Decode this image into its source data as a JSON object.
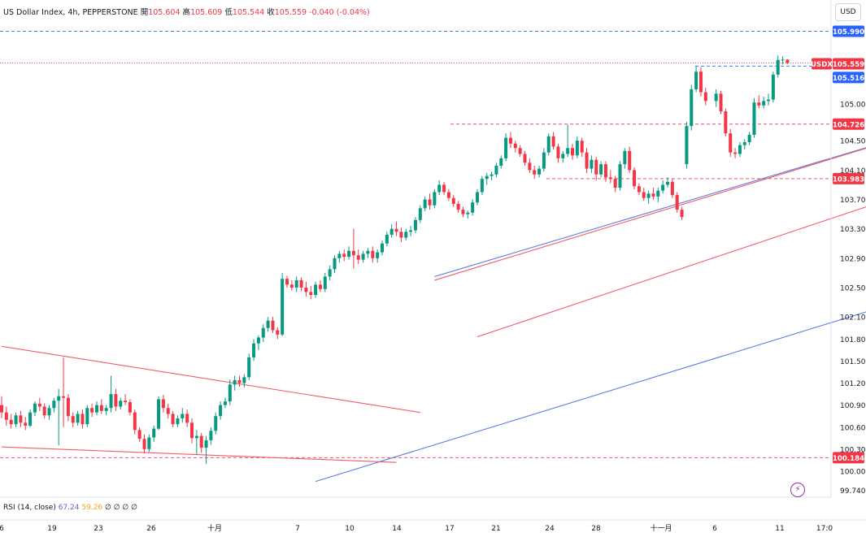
{
  "header": {
    "symbol": "US Dollar Index, 4h, PEPPERSTONE",
    "open_label": "開",
    "open": "105.604",
    "high_label": "高",
    "high": "105.609",
    "low_label": "低",
    "low": "105.544",
    "close_label": "收",
    "close": "105.559",
    "change": "-0.040 (-0.04%)"
  },
  "currency_button": "USD",
  "indicator": {
    "name": "RSI (14, close)",
    "value1": "67.24",
    "value2": "59.26",
    "extras": "∅ ∅ ∅ ∅"
  },
  "colors": {
    "up": "#089981",
    "down": "#f23645",
    "trend_blue": "#5b7fe0",
    "trend_red": "#ef5d6a",
    "blue_tag": "#2962ff",
    "red_tag": "#f23645"
  },
  "icons": {
    "lightning": "lightning-icon"
  },
  "chart_data": {
    "type": "candlestick",
    "y_axis_ticks": [
      "105.000",
      "104.500",
      "104.100",
      "103.700",
      "103.300",
      "102.900",
      "102.500",
      "102.100",
      "101.800",
      "101.500",
      "101.200",
      "100.900",
      "100.600",
      "100.300",
      "100.000",
      "99.740"
    ],
    "x_axis_ticks": [
      "6",
      "19",
      "23",
      "26",
      "十月",
      "7",
      "10",
      "14",
      "17",
      "21",
      "24",
      "28",
      "十一月",
      "6",
      "11",
      "17:0"
    ],
    "price_tags": [
      {
        "label": "105.990",
        "color": "blue"
      },
      {
        "label": "USDX",
        "color": "red"
      },
      {
        "label": "105.559",
        "color": "red"
      },
      {
        "label": "105.516",
        "color": "blue"
      },
      {
        "label": "104.726",
        "color": "red"
      },
      {
        "label": "103.983",
        "color": "red"
      },
      {
        "label": "100.184",
        "color": "red"
      }
    ],
    "horizontal_levels": [
      {
        "value": 105.99,
        "style": "dashed",
        "color": "blue"
      },
      {
        "value": 105.559,
        "style": "dotted",
        "color": "red"
      },
      {
        "value": 105.516,
        "style": "dashed",
        "color": "blue"
      },
      {
        "value": 104.726,
        "style": "dashed",
        "color": "red"
      },
      {
        "value": 103.983,
        "style": "dashed",
        "color": "red"
      },
      {
        "value": 100.184,
        "style": "dashed",
        "color": "red"
      }
    ],
    "trendlines": [
      {
        "color": "blue",
        "from": [
          91,
          102.65
        ],
        "to": [
          275,
          106.21
        ]
      },
      {
        "color": "blue",
        "from": [
          66,
          99.86
        ],
        "to": [
          292,
          104.37
        ]
      },
      {
        "color": "red",
        "from": [
          91,
          102.6
        ],
        "to": [
          193,
          104.62
        ]
      },
      {
        "color": "red",
        "from": [
          100,
          101.83
        ],
        "to": [
          203,
          104.06
        ]
      },
      {
        "color": "red",
        "from": [
          0,
          101.7
        ],
        "to": [
          88,
          100.8
        ]
      },
      {
        "color": "red",
        "from": [
          0,
          100.33
        ],
        "to": [
          83,
          100.12
        ]
      }
    ],
    "series": [
      {
        "o": 100.9,
        "h": 101.02,
        "l": 100.72,
        "c": 100.8
      },
      {
        "o": 100.8,
        "h": 100.88,
        "l": 100.62,
        "c": 100.7
      },
      {
        "o": 100.7,
        "h": 100.78,
        "l": 100.58,
        "c": 100.64
      },
      {
        "o": 100.64,
        "h": 100.8,
        "l": 100.6,
        "c": 100.76
      },
      {
        "o": 100.76,
        "h": 100.82,
        "l": 100.6,
        "c": 100.66
      },
      {
        "o": 100.66,
        "h": 100.74,
        "l": 100.56,
        "c": 100.62
      },
      {
        "o": 100.62,
        "h": 100.84,
        "l": 100.6,
        "c": 100.8
      },
      {
        "o": 100.8,
        "h": 100.95,
        "l": 100.75,
        "c": 100.92
      },
      {
        "o": 100.92,
        "h": 101.0,
        "l": 100.82,
        "c": 100.88
      },
      {
        "o": 100.88,
        "h": 100.92,
        "l": 100.72,
        "c": 100.76
      },
      {
        "o": 100.76,
        "h": 100.9,
        "l": 100.7,
        "c": 100.86
      },
      {
        "o": 100.86,
        "h": 101.0,
        "l": 100.8,
        "c": 100.96
      },
      {
        "o": 100.96,
        "h": 101.12,
        "l": 100.35,
        "c": 101.02
      },
      {
        "o": 101.02,
        "h": 101.55,
        "l": 100.6,
        "c": 101.0
      },
      {
        "o": 101.0,
        "h": 101.05,
        "l": 100.68,
        "c": 100.75
      },
      {
        "o": 100.75,
        "h": 100.8,
        "l": 100.6,
        "c": 100.66
      },
      {
        "o": 100.66,
        "h": 100.82,
        "l": 100.62,
        "c": 100.78
      },
      {
        "o": 100.78,
        "h": 100.84,
        "l": 100.58,
        "c": 100.64
      },
      {
        "o": 100.64,
        "h": 100.9,
        "l": 100.6,
        "c": 100.86
      },
      {
        "o": 100.86,
        "h": 100.92,
        "l": 100.74,
        "c": 100.8
      },
      {
        "o": 100.8,
        "h": 100.95,
        "l": 100.76,
        "c": 100.9
      },
      {
        "o": 100.9,
        "h": 100.98,
        "l": 100.78,
        "c": 100.82
      },
      {
        "o": 100.82,
        "h": 100.9,
        "l": 100.76,
        "c": 100.86
      },
      {
        "o": 100.86,
        "h": 101.3,
        "l": 100.8,
        "c": 101.05
      },
      {
        "o": 101.05,
        "h": 101.12,
        "l": 100.82,
        "c": 100.88
      },
      {
        "o": 100.88,
        "h": 101.0,
        "l": 100.84,
        "c": 100.96
      },
      {
        "o": 100.96,
        "h": 101.05,
        "l": 100.9,
        "c": 100.94
      },
      {
        "o": 100.94,
        "h": 100.98,
        "l": 100.76,
        "c": 100.8
      },
      {
        "o": 100.8,
        "h": 100.84,
        "l": 100.5,
        "c": 100.56
      },
      {
        "o": 100.56,
        "h": 100.6,
        "l": 100.4,
        "c": 100.44
      },
      {
        "o": 100.44,
        "h": 100.5,
        "l": 100.24,
        "c": 100.3
      },
      {
        "o": 100.3,
        "h": 100.5,
        "l": 100.26,
        "c": 100.46
      },
      {
        "o": 100.46,
        "h": 100.62,
        "l": 100.4,
        "c": 100.58
      },
      {
        "o": 100.58,
        "h": 101.02,
        "l": 100.56,
        "c": 100.98
      },
      {
        "o": 100.98,
        "h": 101.04,
        "l": 100.8,
        "c": 100.86
      },
      {
        "o": 100.86,
        "h": 100.92,
        "l": 100.72,
        "c": 100.78
      },
      {
        "o": 100.78,
        "h": 100.82,
        "l": 100.6,
        "c": 100.64
      },
      {
        "o": 100.64,
        "h": 100.76,
        "l": 100.6,
        "c": 100.72
      },
      {
        "o": 100.72,
        "h": 100.86,
        "l": 100.66,
        "c": 100.78
      },
      {
        "o": 100.78,
        "h": 100.84,
        "l": 100.6,
        "c": 100.66
      },
      {
        "o": 100.66,
        "h": 100.72,
        "l": 100.38,
        "c": 100.45
      },
      {
        "o": 100.45,
        "h": 100.56,
        "l": 100.22,
        "c": 100.48
      },
      {
        "o": 100.48,
        "h": 100.52,
        "l": 100.25,
        "c": 100.32
      },
      {
        "o": 100.32,
        "h": 100.48,
        "l": 100.1,
        "c": 100.42
      },
      {
        "o": 100.42,
        "h": 100.6,
        "l": 100.36,
        "c": 100.55
      },
      {
        "o": 100.55,
        "h": 100.8,
        "l": 100.5,
        "c": 100.75
      },
      {
        "o": 100.75,
        "h": 100.95,
        "l": 100.7,
        "c": 100.9
      },
      {
        "o": 100.9,
        "h": 101.0,
        "l": 100.86,
        "c": 100.95
      },
      {
        "o": 100.95,
        "h": 101.25,
        "l": 100.9,
        "c": 101.18
      },
      {
        "o": 101.18,
        "h": 101.3,
        "l": 101.1,
        "c": 101.24
      },
      {
        "o": 101.24,
        "h": 101.3,
        "l": 101.15,
        "c": 101.2
      },
      {
        "o": 101.2,
        "h": 101.32,
        "l": 101.14,
        "c": 101.28
      },
      {
        "o": 101.28,
        "h": 101.6,
        "l": 101.24,
        "c": 101.55
      },
      {
        "o": 101.55,
        "h": 101.8,
        "l": 101.5,
        "c": 101.74
      },
      {
        "o": 101.74,
        "h": 101.85,
        "l": 101.65,
        "c": 101.82
      },
      {
        "o": 101.82,
        "h": 102.0,
        "l": 101.76,
        "c": 101.95
      },
      {
        "o": 101.95,
        "h": 102.1,
        "l": 101.9,
        "c": 102.05
      },
      {
        "o": 102.05,
        "h": 102.1,
        "l": 101.88,
        "c": 101.92
      },
      {
        "o": 101.92,
        "h": 101.96,
        "l": 101.8,
        "c": 101.86
      },
      {
        "o": 101.86,
        "h": 102.7,
        "l": 101.84,
        "c": 102.62
      },
      {
        "o": 102.62,
        "h": 102.66,
        "l": 102.5,
        "c": 102.54
      },
      {
        "o": 102.54,
        "h": 102.6,
        "l": 102.46,
        "c": 102.5
      },
      {
        "o": 102.5,
        "h": 102.65,
        "l": 102.44,
        "c": 102.6
      },
      {
        "o": 102.6,
        "h": 102.64,
        "l": 102.45,
        "c": 102.5
      },
      {
        "o": 102.5,
        "h": 102.58,
        "l": 102.38,
        "c": 102.44
      },
      {
        "o": 102.44,
        "h": 102.52,
        "l": 102.34,
        "c": 102.4
      },
      {
        "o": 102.4,
        "h": 102.58,
        "l": 102.36,
        "c": 102.54
      },
      {
        "o": 102.54,
        "h": 102.6,
        "l": 102.44,
        "c": 102.48
      },
      {
        "o": 102.48,
        "h": 102.7,
        "l": 102.44,
        "c": 102.65
      },
      {
        "o": 102.65,
        "h": 102.8,
        "l": 102.6,
        "c": 102.75
      },
      {
        "o": 102.75,
        "h": 102.94,
        "l": 102.7,
        "c": 102.9
      },
      {
        "o": 102.9,
        "h": 103.0,
        "l": 102.84,
        "c": 102.96
      },
      {
        "o": 102.96,
        "h": 103.02,
        "l": 102.86,
        "c": 102.92
      },
      {
        "o": 102.92,
        "h": 103.06,
        "l": 102.88,
        "c": 103.0
      },
      {
        "o": 103.0,
        "h": 103.3,
        "l": 102.76,
        "c": 102.94
      },
      {
        "o": 102.94,
        "h": 103.02,
        "l": 102.82,
        "c": 102.88
      },
      {
        "o": 102.88,
        "h": 103.0,
        "l": 102.84,
        "c": 102.96
      },
      {
        "o": 102.96,
        "h": 103.04,
        "l": 102.9,
        "c": 103.0
      },
      {
        "o": 103.0,
        "h": 103.06,
        "l": 102.84,
        "c": 102.9
      },
      {
        "o": 102.9,
        "h": 103.02,
        "l": 102.84,
        "c": 102.98
      },
      {
        "o": 102.98,
        "h": 103.14,
        "l": 102.94,
        "c": 103.1
      },
      {
        "o": 103.1,
        "h": 103.26,
        "l": 103.06,
        "c": 103.22
      },
      {
        "o": 103.22,
        "h": 103.36,
        "l": 103.18,
        "c": 103.3
      },
      {
        "o": 103.3,
        "h": 103.4,
        "l": 103.2,
        "c": 103.26
      },
      {
        "o": 103.26,
        "h": 103.32,
        "l": 103.12,
        "c": 103.18
      },
      {
        "o": 103.18,
        "h": 103.3,
        "l": 103.14,
        "c": 103.26
      },
      {
        "o": 103.26,
        "h": 103.34,
        "l": 103.2,
        "c": 103.28
      },
      {
        "o": 103.28,
        "h": 103.46,
        "l": 103.24,
        "c": 103.42
      },
      {
        "o": 103.42,
        "h": 103.62,
        "l": 103.38,
        "c": 103.58
      },
      {
        "o": 103.58,
        "h": 103.74,
        "l": 103.54,
        "c": 103.7
      },
      {
        "o": 103.7,
        "h": 103.78,
        "l": 103.56,
        "c": 103.62
      },
      {
        "o": 103.62,
        "h": 103.84,
        "l": 103.58,
        "c": 103.8
      },
      {
        "o": 103.8,
        "h": 103.96,
        "l": 103.76,
        "c": 103.9
      },
      {
        "o": 103.9,
        "h": 103.94,
        "l": 103.76,
        "c": 103.8
      },
      {
        "o": 103.8,
        "h": 103.84,
        "l": 103.68,
        "c": 103.72
      },
      {
        "o": 103.72,
        "h": 103.76,
        "l": 103.6,
        "c": 103.64
      },
      {
        "o": 103.64,
        "h": 103.68,
        "l": 103.52,
        "c": 103.56
      },
      {
        "o": 103.56,
        "h": 103.6,
        "l": 103.46,
        "c": 103.5
      },
      {
        "o": 103.5,
        "h": 103.55,
        "l": 103.44,
        "c": 103.52
      },
      {
        "o": 103.52,
        "h": 103.7,
        "l": 103.48,
        "c": 103.66
      },
      {
        "o": 103.66,
        "h": 103.84,
        "l": 103.62,
        "c": 103.8
      },
      {
        "o": 103.8,
        "h": 104.02,
        "l": 103.76,
        "c": 103.98
      },
      {
        "o": 103.98,
        "h": 104.06,
        "l": 103.9,
        "c": 104.02
      },
      {
        "o": 104.02,
        "h": 104.08,
        "l": 103.96,
        "c": 104.04
      },
      {
        "o": 104.04,
        "h": 104.2,
        "l": 104.0,
        "c": 104.16
      },
      {
        "o": 104.16,
        "h": 104.3,
        "l": 104.12,
        "c": 104.26
      },
      {
        "o": 104.26,
        "h": 104.6,
        "l": 104.22,
        "c": 104.54
      },
      {
        "o": 104.54,
        "h": 104.62,
        "l": 104.4,
        "c": 104.46
      },
      {
        "o": 104.46,
        "h": 104.5,
        "l": 104.34,
        "c": 104.4
      },
      {
        "o": 104.4,
        "h": 104.44,
        "l": 104.28,
        "c": 104.32
      },
      {
        "o": 104.32,
        "h": 104.36,
        "l": 104.16,
        "c": 104.2
      },
      {
        "o": 104.2,
        "h": 104.26,
        "l": 104.06,
        "c": 104.1
      },
      {
        "o": 104.1,
        "h": 104.16,
        "l": 103.98,
        "c": 104.04
      },
      {
        "o": 104.04,
        "h": 104.16,
        "l": 104.0,
        "c": 104.12
      },
      {
        "o": 104.12,
        "h": 104.4,
        "l": 104.08,
        "c": 104.34
      },
      {
        "o": 104.34,
        "h": 104.6,
        "l": 104.3,
        "c": 104.56
      },
      {
        "o": 104.56,
        "h": 104.62,
        "l": 104.38,
        "c": 104.42
      },
      {
        "o": 104.42,
        "h": 104.46,
        "l": 104.2,
        "c": 104.26
      },
      {
        "o": 104.26,
        "h": 104.36,
        "l": 104.2,
        "c": 104.32
      },
      {
        "o": 104.32,
        "h": 104.72,
        "l": 104.28,
        "c": 104.4
      },
      {
        "o": 104.4,
        "h": 104.46,
        "l": 104.24,
        "c": 104.3
      },
      {
        "o": 104.3,
        "h": 104.56,
        "l": 104.26,
        "c": 104.5
      },
      {
        "o": 104.5,
        "h": 104.54,
        "l": 104.28,
        "c": 104.34
      },
      {
        "o": 104.34,
        "h": 104.4,
        "l": 104.06,
        "c": 104.12
      },
      {
        "o": 104.12,
        "h": 104.3,
        "l": 104.06,
        "c": 104.24
      },
      {
        "o": 104.24,
        "h": 104.28,
        "l": 103.96,
        "c": 104.04
      },
      {
        "o": 104.04,
        "h": 104.22,
        "l": 104.0,
        "c": 104.18
      },
      {
        "o": 104.18,
        "h": 104.22,
        "l": 103.94,
        "c": 104.0
      },
      {
        "o": 104.0,
        "h": 104.1,
        "l": 103.92,
        "c": 103.98
      },
      {
        "o": 103.98,
        "h": 104.02,
        "l": 103.8,
        "c": 103.86
      },
      {
        "o": 103.86,
        "h": 104.22,
        "l": 103.82,
        "c": 104.18
      },
      {
        "o": 104.18,
        "h": 104.4,
        "l": 104.12,
        "c": 104.36
      },
      {
        "o": 104.36,
        "h": 104.42,
        "l": 104.06,
        "c": 104.1
      },
      {
        "o": 104.1,
        "h": 104.14,
        "l": 103.84,
        "c": 103.88
      },
      {
        "o": 103.88,
        "h": 103.92,
        "l": 103.76,
        "c": 103.8
      },
      {
        "o": 103.8,
        "h": 103.86,
        "l": 103.68,
        "c": 103.72
      },
      {
        "o": 103.72,
        "h": 103.82,
        "l": 103.64,
        "c": 103.78
      },
      {
        "o": 103.78,
        "h": 103.86,
        "l": 103.7,
        "c": 103.74
      },
      {
        "o": 103.74,
        "h": 103.86,
        "l": 103.66,
        "c": 103.82
      },
      {
        "o": 103.82,
        "h": 103.96,
        "l": 103.78,
        "c": 103.9
      },
      {
        "o": 103.9,
        "h": 104.0,
        "l": 103.86,
        "c": 103.94
      },
      {
        "o": 103.94,
        "h": 103.98,
        "l": 103.72,
        "c": 103.76
      },
      {
        "o": 103.76,
        "h": 103.8,
        "l": 103.52,
        "c": 103.56
      },
      {
        "o": 103.56,
        "h": 103.6,
        "l": 103.42,
        "c": 103.46
      },
      {
        "o": 104.18,
        "h": 104.76,
        "l": 104.12,
        "c": 104.7
      },
      {
        "o": 104.7,
        "h": 105.26,
        "l": 104.64,
        "c": 105.2
      },
      {
        "o": 105.2,
        "h": 105.52,
        "l": 105.16,
        "c": 105.44
      },
      {
        "o": 105.44,
        "h": 105.5,
        "l": 105.1,
        "c": 105.16
      },
      {
        "o": 105.16,
        "h": 105.22,
        "l": 104.98,
        "c": 105.04
      },
      {
        "o": 105.04,
        "h": 105.2,
        "l": 104.96,
        "c": 105.14
      },
      {
        "o": 105.14,
        "h": 105.18,
        "l": 104.86,
        "c": 104.9
      },
      {
        "o": 104.9,
        "h": 104.94,
        "l": 104.56,
        "c": 104.6
      },
      {
        "o": 104.6,
        "h": 104.66,
        "l": 104.28,
        "c": 104.34
      },
      {
        "o": 104.34,
        "h": 104.4,
        "l": 104.26,
        "c": 104.32
      },
      {
        "o": 104.32,
        "h": 104.48,
        "l": 104.28,
        "c": 104.44
      },
      {
        "o": 104.44,
        "h": 104.52,
        "l": 104.38,
        "c": 104.48
      },
      {
        "o": 104.48,
        "h": 104.62,
        "l": 104.44,
        "c": 104.58
      },
      {
        "o": 104.58,
        "h": 105.08,
        "l": 104.54,
        "c": 105.02
      },
      {
        "o": 105.02,
        "h": 105.12,
        "l": 104.94,
        "c": 104.98
      },
      {
        "o": 104.98,
        "h": 105.1,
        "l": 104.94,
        "c": 105.04
      },
      {
        "o": 105.04,
        "h": 105.14,
        "l": 104.98,
        "c": 105.06
      },
      {
        "o": 105.06,
        "h": 105.44,
        "l": 105.02,
        "c": 105.4
      },
      {
        "o": 105.4,
        "h": 105.66,
        "l": 105.36,
        "c": 105.6
      },
      {
        "o": 105.6,
        "h": 105.65,
        "l": 105.54,
        "c": 105.604
      },
      {
        "o": 105.604,
        "h": 105.609,
        "l": 105.544,
        "c": 105.559
      }
    ]
  }
}
